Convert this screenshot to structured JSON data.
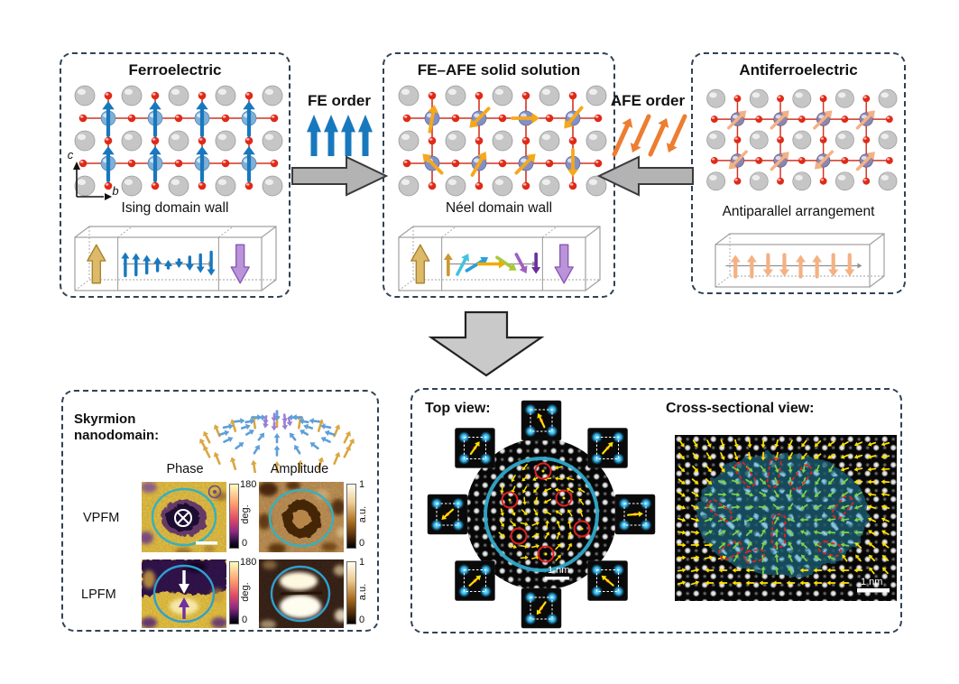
{
  "panels": {
    "fe": {
      "title": "Ferroelectric",
      "axis_vertical": "c",
      "axis_horizontal": "b",
      "wall_label": "Ising domain wall"
    },
    "ss": {
      "title": "FE–AFE solid solution",
      "wall_label": "Néel domain wall"
    },
    "afe": {
      "title": "Antiferroelectric",
      "wall_label": "Antiparallel arrangement"
    }
  },
  "transitions": {
    "fe_order": "FE order",
    "afe_order": "AFE order"
  },
  "skyrmion": {
    "title": "Skyrmion nanodomain:",
    "phase_header": "Phase",
    "amplitude_header": "Amplitude",
    "vpfm_label": "VPFM",
    "lpfm_label": "LPFM",
    "phase_max": "180",
    "phase_min": "0",
    "phase_unit": "deg.",
    "amp_max": "1",
    "amp_min": "0",
    "amp_unit": "a.u."
  },
  "stem": {
    "top_view_label": "Top view:",
    "cross_view_label": "Cross-sectional view:",
    "top_scalebar": "1 nm",
    "cross_scalebar": "1 nm"
  },
  "colors": {
    "fe_blue": "#1878be",
    "afe_orange": "#ed7d31",
    "afe_pale": "#f4b183",
    "cyan_ring": "#2fa8c8",
    "marker_red": "#e02020",
    "arrow_yellow": "#ffe000",
    "arrow_green": "#7ed348",
    "panel_border": "#2f4256",
    "gold": "#ddb96a",
    "purple": "#bb93d8"
  },
  "figure_data": {
    "fe_site_polarization_deg": [
      [
        90,
        90,
        90,
        90
      ],
      [
        90,
        90,
        90,
        90
      ]
    ],
    "ss_site_polarization_deg": [
      [
        80,
        225,
        0,
        230
      ],
      [
        135,
        60,
        45,
        270
      ]
    ],
    "afe_site_polarization_deg": [
      [
        45,
        45,
        45,
        45
      ],
      [
        225,
        45,
        225,
        45
      ]
    ],
    "ising_wall_profile": [
      26,
      24,
      20,
      15,
      9,
      -9,
      -15,
      -20,
      -26
    ],
    "neel_wall_arrows": [
      {
        "angle": 90,
        "len": 24,
        "color": "#c9982f"
      },
      {
        "angle": 62,
        "len": 26,
        "color": "#45c2e0"
      },
      {
        "angle": 32,
        "len": 28,
        "color": "#2a9fd8"
      },
      {
        "angle": 0,
        "len": 30,
        "color": "#f5a800"
      },
      {
        "angle": -34,
        "len": 26,
        "color": "#a9c938"
      },
      {
        "angle": -62,
        "len": 24,
        "color": "#a05fc0"
      },
      {
        "angle": -90,
        "len": 22,
        "color": "#6b2d9e"
      }
    ],
    "afe_wall_profile": [
      1,
      1,
      -1,
      -1,
      1,
      1,
      -1,
      -1
    ],
    "unit_cell_inset_angles": [
      115,
      48,
      5,
      140,
      235,
      42,
      222,
      55
    ]
  }
}
